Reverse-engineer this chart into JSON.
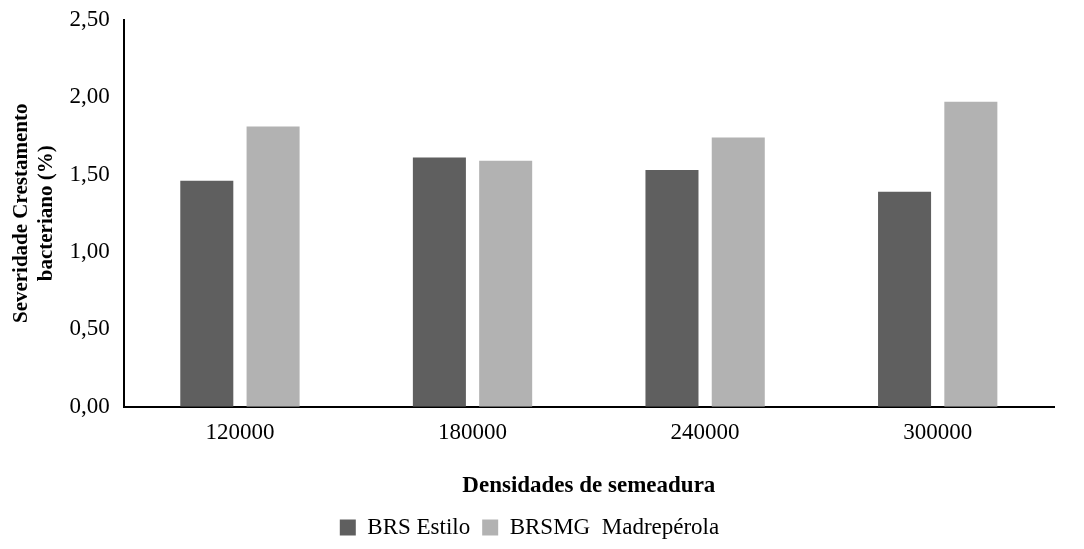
{
  "chart_data": {
    "type": "bar",
    "xlabel": "Densidades de semeadura",
    "ylabel": "Severidade Crestamento bacteriano (%)",
    "categories": [
      "120000",
      "180000",
      "240000",
      "300000"
    ],
    "series": [
      {
        "name": "BRS Estilo",
        "color": "#5f5f5f",
        "values": [
          1.46,
          1.61,
          1.53,
          1.39
        ]
      },
      {
        "name": "BRSMG  Madrepérola",
        "color": "#b2b2b2",
        "values": [
          1.81,
          1.59,
          1.74,
          1.97
        ]
      }
    ],
    "ylim": [
      0,
      2.5
    ],
    "yticks": [
      {
        "value": 0,
        "label": "0,00"
      },
      {
        "value": 0.5,
        "label": "0,50"
      },
      {
        "value": 1,
        "label": "1,00"
      },
      {
        "value": 1.5,
        "label": "1,50"
      },
      {
        "value": 2,
        "label": "2,00"
      },
      {
        "value": 2.5,
        "label": "2,50"
      }
    ],
    "grid": false,
    "legend": "bottom"
  }
}
